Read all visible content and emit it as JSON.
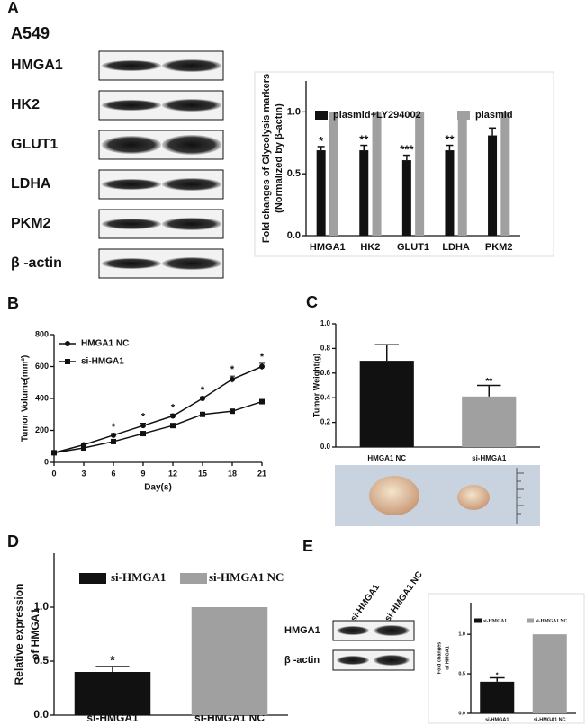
{
  "panels": [
    "A",
    "B",
    "C",
    "D",
    "E"
  ],
  "blot_a": {
    "cell_line": "A549",
    "rows": [
      "HMGA1",
      "HK2",
      "GLUT1",
      "LDHA",
      "PKM2",
      "β -actin"
    ]
  },
  "blot_e": {
    "columns": [
      "si-HMGA1",
      "si-HMGA1 NC"
    ],
    "rows": [
      "HMGA1",
      "β -actin"
    ]
  },
  "chart_data": [
    {
      "type": "bar",
      "ylabel": [
        "Fold changes of Glycolysis markers",
        "(Normalized by β-actin)"
      ],
      "categories": [
        "HMGA1",
        "HK2",
        "GLUT1",
        "LDHA",
        "PKM2"
      ],
      "series": [
        {
          "name": "plasmid+LY294002",
          "color": "#111111",
          "values": [
            0.69,
            0.69,
            0.61,
            0.69,
            0.81
          ],
          "errors": [
            0.03,
            0.04,
            0.04,
            0.04,
            0.06
          ]
        },
        {
          "name": "plasmid",
          "color": "#a0a0a0",
          "values": [
            1.0,
            1.0,
            1.0,
            1.0,
            1.0
          ]
        }
      ],
      "annotations": [
        "*",
        "**",
        "***",
        "**",
        null
      ],
      "ylim": [
        0,
        1.25
      ],
      "yticks": [
        {
          "value": 0,
          "label": "0.0"
        },
        {
          "value": 0.5,
          "label": "0.5"
        },
        {
          "value": 1,
          "label": "1.0"
        }
      ]
    },
    {
      "type": "line",
      "xlabel": "Day(s)",
      "ylabel": "Tumor Volume(mm³)",
      "x": [
        0,
        3,
        6,
        9,
        12,
        15,
        18,
        21
      ],
      "series": [
        {
          "name": "HMGA1 NC",
          "color": "#111111",
          "marker": "circle",
          "values": [
            60,
            110,
            170,
            230,
            290,
            400,
            520,
            600
          ],
          "errors": [
            0,
            8,
            10,
            15,
            12,
            10,
            20,
            20
          ]
        },
        {
          "name": "si-HMGA1",
          "color": "#111111",
          "marker": "square",
          "values": [
            60,
            90,
            130,
            180,
            230,
            300,
            320,
            380
          ]
        }
      ],
      "annotations": [
        null,
        null,
        "*",
        "*",
        "*",
        "*",
        "*",
        "*"
      ],
      "xlim": [
        0,
        21
      ],
      "xticks": [
        0,
        3,
        6,
        9,
        12,
        15,
        18,
        21
      ],
      "ylim": [
        0,
        800
      ],
      "yticks": [
        0,
        200,
        400,
        600,
        800
      ]
    },
    {
      "type": "bar",
      "ylabel": "Tumor Weight(g)",
      "categories": [
        "HMGA1 NC",
        "si-HMGA1"
      ],
      "values": [
        0.7,
        0.41
      ],
      "errors": [
        0.13,
        0.09
      ],
      "colors": [
        "#111111",
        "#a0a0a0"
      ],
      "annotations": [
        null,
        "**"
      ],
      "ylim": [
        0,
        1.0
      ],
      "yticks": [
        {
          "value": 0,
          "label": "0.0"
        },
        {
          "value": 0.2,
          "label": "0.2"
        },
        {
          "value": 0.4,
          "label": "0.4"
        },
        {
          "value": 0.6,
          "label": "0.6"
        },
        {
          "value": 0.8,
          "label": "0.8"
        },
        {
          "value": 1,
          "label": "1.0"
        }
      ]
    },
    {
      "type": "bar",
      "ylabel": [
        "Relative expression",
        "of HMGA1"
      ],
      "legend": true,
      "categories": [
        "si-HMGA1",
        "si-HMGA1 NC"
      ],
      "values": [
        0.4,
        1.0
      ],
      "errors": [
        0.05,
        0
      ],
      "colors": [
        "#111111",
        "#a0a0a0"
      ],
      "annotations": [
        "*",
        null
      ],
      "ylim": [
        0,
        1.5
      ],
      "yticks": [
        {
          "value": 0,
          "label": "0.0"
        },
        {
          "value": 0.5,
          "label": "0.5"
        },
        {
          "value": 1,
          "label": "1.0"
        }
      ]
    },
    {
      "type": "bar",
      "ylabel": [
        "Fold changes",
        "of HMGA1"
      ],
      "legend": true,
      "categories": [
        "si-HMGA1",
        "si-HMGA1 NC"
      ],
      "values": [
        0.4,
        1.0
      ],
      "errors": [
        0.05,
        0
      ],
      "colors": [
        "#111111",
        "#a0a0a0"
      ],
      "annotations": [
        "*",
        null
      ],
      "ylim": [
        0,
        1.4
      ],
      "yticks": [
        {
          "value": 0,
          "label": "0.0"
        },
        {
          "value": 0.5,
          "label": "0.5"
        },
        {
          "value": 1,
          "label": "1.0"
        }
      ]
    }
  ]
}
